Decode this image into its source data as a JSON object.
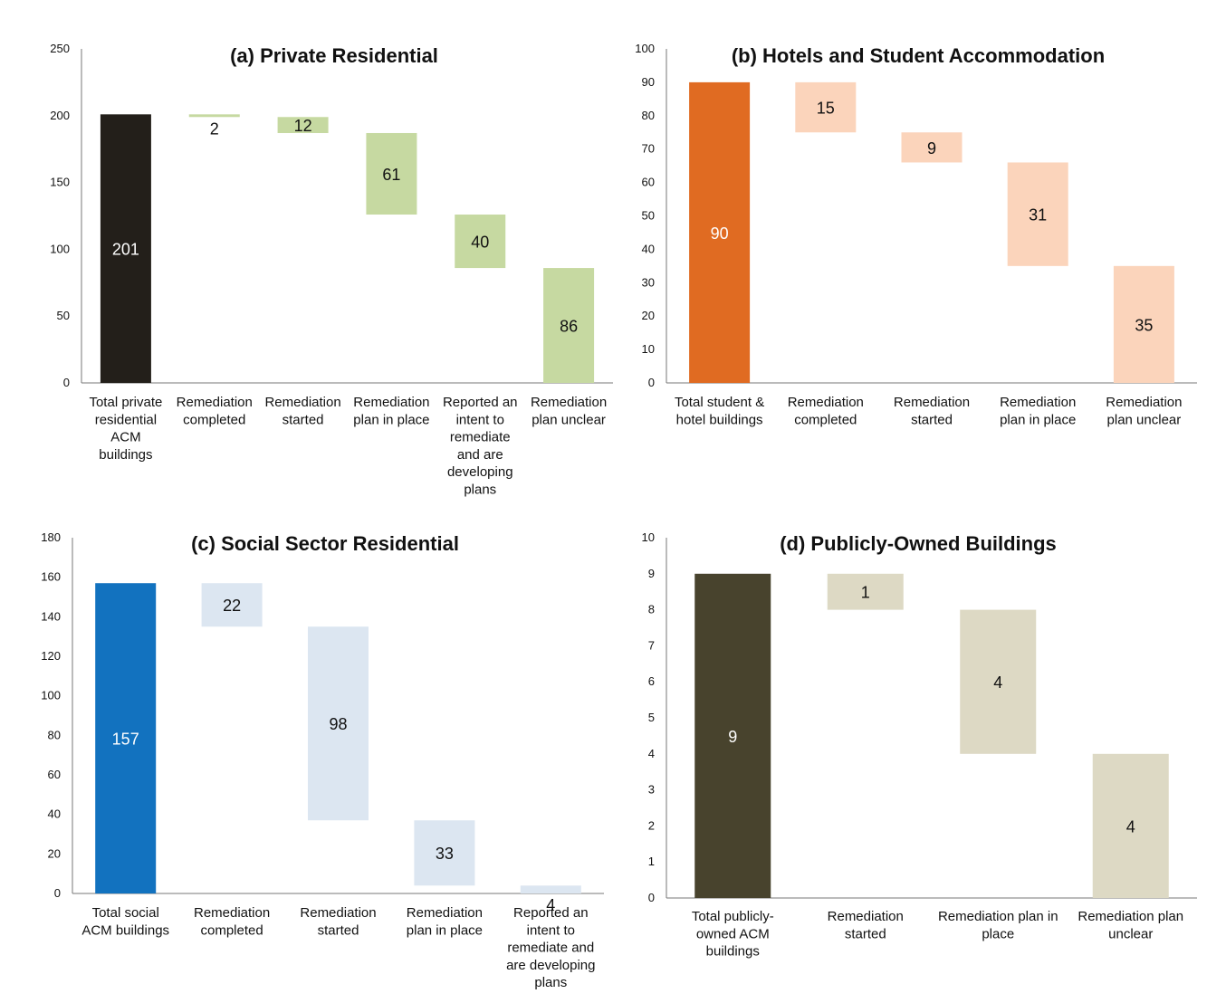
{
  "chart_data": [
    {
      "type": "bar",
      "variant": "waterfall",
      "title": "(a) Private Residential",
      "xlabel": "",
      "ylabel": "",
      "ylim": [
        0,
        250
      ],
      "yticks": [
        "0",
        "50",
        "100",
        "150",
        "200",
        "250"
      ],
      "grid": false,
      "colors": {
        "total": "#231f1a",
        "step": "#c6d9a1",
        "total_text": "#ffffff",
        "step_text": "#111111"
      },
      "categories": [
        [
          "Total private",
          "residential",
          "ACM",
          "buildings"
        ],
        [
          "Remediation",
          "completed"
        ],
        [
          "Remediation",
          "started"
        ],
        [
          "Remediation",
          "plan in place"
        ],
        [
          "Reported an",
          "intent to",
          "remediate",
          "and are",
          "developing",
          "plans"
        ],
        [
          "Remediation",
          "plan unclear"
        ]
      ],
      "values": [
        201,
        2,
        12,
        61,
        40,
        86
      ],
      "labels": [
        "201",
        "2",
        "12",
        "61",
        "40",
        "86"
      ]
    },
    {
      "type": "bar",
      "variant": "waterfall",
      "title": "(b) Hotels and Student Accommodation",
      "xlabel": "",
      "ylabel": "",
      "ylim": [
        0,
        100
      ],
      "yticks": [
        "0",
        "10",
        "20",
        "30",
        "40",
        "50",
        "60",
        "70",
        "80",
        "90",
        "100"
      ],
      "grid": false,
      "colors": {
        "total": "#e06b22",
        "step": "#fbd4bb",
        "total_text": "#ffffff",
        "step_text": "#111111"
      },
      "categories": [
        [
          "Total student &",
          "hotel buildings"
        ],
        [
          "Remediation",
          "completed"
        ],
        [
          "Remediation",
          "started"
        ],
        [
          "Remediation",
          "plan in place"
        ],
        [
          "Remediation",
          "plan unclear"
        ]
      ],
      "values": [
        90,
        15,
        9,
        31,
        35
      ],
      "labels": [
        "90",
        "15",
        "9",
        "31",
        "35"
      ]
    },
    {
      "type": "bar",
      "variant": "waterfall",
      "title": "(c) Social Sector Residential",
      "xlabel": "",
      "ylabel": "",
      "ylim": [
        0,
        180
      ],
      "yticks": [
        "0",
        "20",
        "40",
        "60",
        "80",
        "100",
        "120",
        "140",
        "160",
        "180"
      ],
      "grid": false,
      "colors": {
        "total": "#1272bf",
        "step": "#dce6f1",
        "total_text": "#ffffff",
        "step_text": "#111111"
      },
      "categories": [
        [
          "Total social",
          "ACM buildings"
        ],
        [
          "Remediation",
          "completed"
        ],
        [
          "Remediation",
          "started"
        ],
        [
          "Remediation",
          "plan in place"
        ],
        [
          "Reported an",
          "intent to",
          "remediate and",
          "are developing",
          "plans"
        ]
      ],
      "values": [
        157,
        22,
        98,
        33,
        4
      ],
      "labels": [
        "157",
        "22",
        "98",
        "33",
        "4"
      ]
    },
    {
      "type": "bar",
      "variant": "waterfall",
      "title": "(d) Publicly-Owned Buildings",
      "xlabel": "",
      "ylabel": "",
      "ylim": [
        0,
        10
      ],
      "yticks": [
        "0",
        "1",
        "2",
        "3",
        "4",
        "5",
        "6",
        "7",
        "8",
        "9",
        "10"
      ],
      "grid": false,
      "colors": {
        "total": "#48432d",
        "step": "#ddd9c4",
        "total_text": "#ffffff",
        "step_text": "#111111"
      },
      "categories": [
        [
          "Total publicly-",
          "owned ACM",
          "buildings"
        ],
        [
          "Remediation",
          "started"
        ],
        [
          "Remediation plan in",
          "place"
        ],
        [
          "Remediation plan",
          "unclear"
        ]
      ],
      "values": [
        9,
        1,
        4,
        4
      ],
      "labels": [
        "9",
        "1",
        "4",
        "4"
      ]
    }
  ]
}
